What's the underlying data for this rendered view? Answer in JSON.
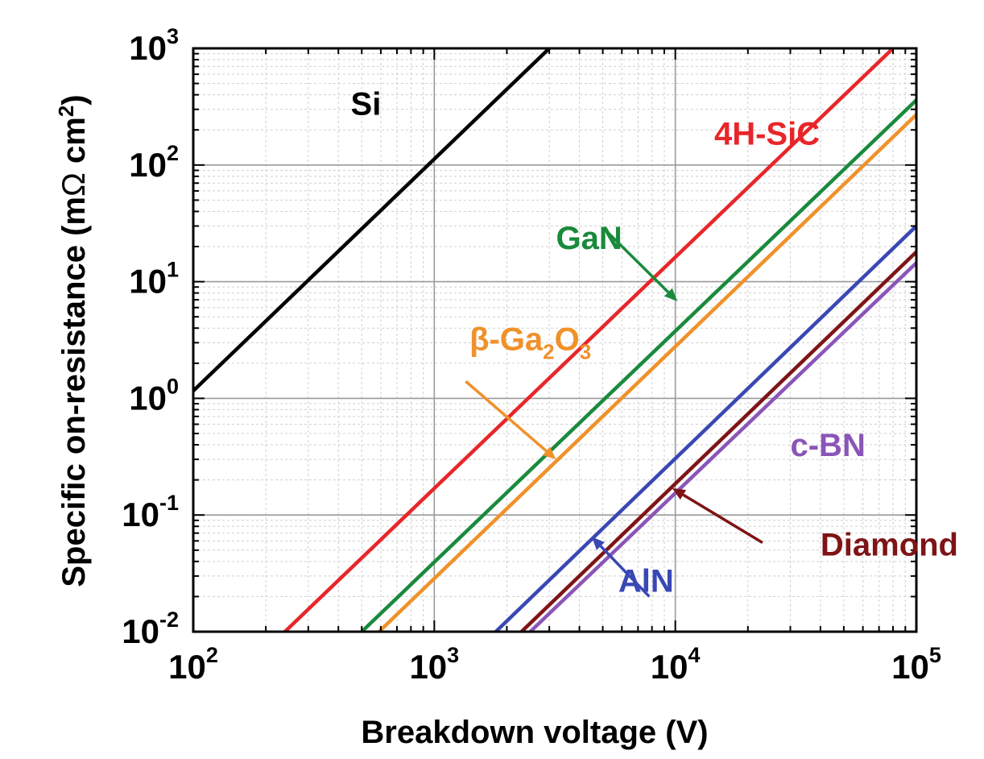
{
  "chart_data": {
    "type": "line",
    "title": "",
    "xlabel": "Breakdown voltage (V)",
    "ylabel_main": "Specific on-resistance (m",
    "ylabel_omega": "Ω",
    "ylabel_unit": " cm",
    "ylabel_sup": "2",
    "ylabel_close": ")",
    "x_scale": "log",
    "y_scale": "log",
    "xlim": [
      100,
      100000
    ],
    "ylim": [
      0.01,
      1000
    ],
    "grid": true,
    "x_ticks": [
      {
        "value": 100,
        "base": "10",
        "exp": "2"
      },
      {
        "value": 1000,
        "base": "10",
        "exp": "3"
      },
      {
        "value": 10000,
        "base": "10",
        "exp": "4"
      },
      {
        "value": 100000,
        "base": "10",
        "exp": "5"
      }
    ],
    "y_ticks": [
      {
        "value": 0.01,
        "base": "10",
        "exp": "-2"
      },
      {
        "value": 0.1,
        "base": "10",
        "exp": "-1"
      },
      {
        "value": 1,
        "base": "10",
        "exp": "0"
      },
      {
        "value": 10,
        "base": "10",
        "exp": "1"
      },
      {
        "value": 100,
        "base": "10",
        "exp": "2"
      },
      {
        "value": 1000,
        "base": "10",
        "exp": "3"
      }
    ],
    "series": [
      {
        "name": "Si",
        "color": "#000000",
        "x": [
          100,
          3000
        ],
        "y": [
          1.16,
          1000
        ]
      },
      {
        "name": "4H-SiC",
        "color": "#e8262a",
        "x": [
          240,
          80000
        ],
        "y": [
          0.01,
          1000
        ]
      },
      {
        "name": "GaN",
        "color": "#1a8a3c",
        "x": [
          500,
          100000
        ],
        "y": [
          0.01,
          360
        ]
      },
      {
        "name": "β-Ga2O3",
        "color": "#f0912a",
        "x": [
          590,
          100000
        ],
        "y": [
          0.01,
          270
        ]
      },
      {
        "name": "AlN",
        "color": "#3a48b4",
        "x": [
          1800,
          100000
        ],
        "y": [
          0.01,
          30
        ]
      },
      {
        "name": "Diamond",
        "color": "#7e1416",
        "x": [
          2300,
          100000
        ],
        "y": [
          0.01,
          18
        ]
      },
      {
        "name": "c-BN",
        "color": "#8a55b8",
        "x": [
          2500,
          100000
        ],
        "y": [
          0.01,
          14.5
        ]
      }
    ],
    "annotations": [
      {
        "text": "Si",
        "color": "#000000",
        "x": 450,
        "y": 270
      },
      {
        "text": "4H-SiC",
        "color": "#e8262a",
        "x": 14500,
        "y": 150
      },
      {
        "text": "GaN",
        "color": "#1a8a3c",
        "x": 3200,
        "y": 19
      },
      {
        "text_main": "β-Ga",
        "sub1": "2",
        "mid": "O",
        "sub2": "3",
        "color": "#f0912a",
        "x": 1400,
        "y": 2.6
      },
      {
        "text": "c-BN",
        "color": "#8a55b8",
        "x": 30000,
        "y": 0.32
      },
      {
        "text": "Diamond",
        "color": "#7e1416",
        "x": 40000,
        "y": 0.045
      },
      {
        "text": "AlN",
        "color": "#3a48b4",
        "x": 5800,
        "y": 0.022
      }
    ],
    "arrows": [
      {
        "color": "#1a8a3c",
        "from": [
          5100,
          28
        ],
        "to": [
          10200,
          6.8
        ]
      },
      {
        "color": "#f0912a",
        "from": [
          1350,
          1.4
        ],
        "to": [
          3200,
          0.3
        ]
      },
      {
        "color": "#7e1416",
        "from": [
          23000,
          0.058
        ],
        "to": [
          9700,
          0.17
        ]
      },
      {
        "color": "#3a48b4",
        "from": [
          7800,
          0.02
        ],
        "to": [
          4500,
          0.065
        ]
      }
    ]
  }
}
